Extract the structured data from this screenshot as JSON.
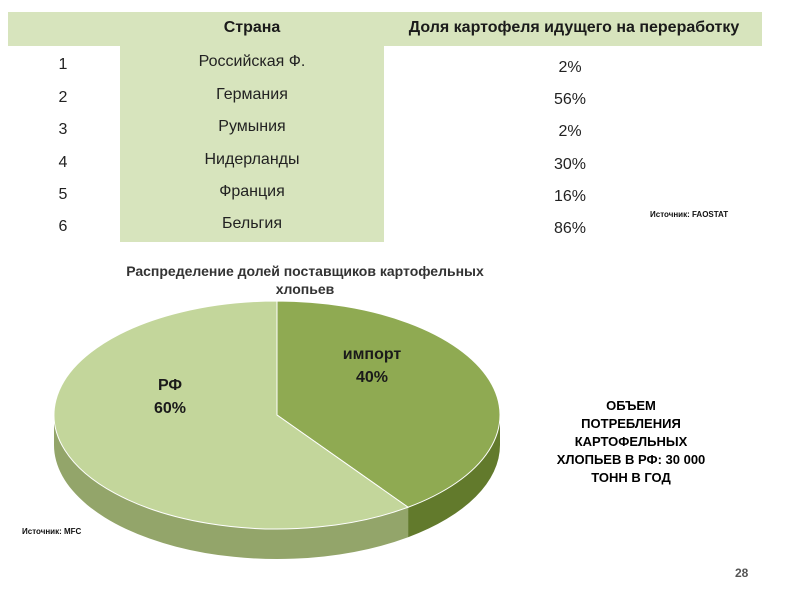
{
  "table": {
    "headers": {
      "country": "Страна",
      "share": "Доля картофеля идущего на переработку"
    },
    "rows": [
      {
        "num": "1",
        "country": "Российская Ф.",
        "share": "2%"
      },
      {
        "num": "2",
        "country": "Германия",
        "share": "56%"
      },
      {
        "num": "3",
        "country": "Румыния",
        "share": "2%"
      },
      {
        "num": "4",
        "country": "Нидерланды",
        "share": "30%"
      },
      {
        "num": "5",
        "country": "Франция",
        "share": "16%"
      },
      {
        "num": "6",
        "country": "Бельгия",
        "share": "86%"
      }
    ],
    "source": "Источник: FAOSTAT"
  },
  "chart_data": {
    "type": "pie",
    "title": "Распределение долей поставщиков картофельных хлопьев",
    "slices": [
      {
        "label": "импорт",
        "value": 40,
        "value_label": "40%",
        "color": "#8faa52"
      },
      {
        "label": "РФ",
        "value": 60,
        "value_label": "60%",
        "color": "#c3d69b"
      }
    ],
    "source": "Источник: MFC"
  },
  "note": "ОБЪЕМ ПОТРЕБЛЕНИЯ КАРТОФЕЛЬНЫХ ХЛОПЬЕВ В РФ: 30 000 ТОНН В ГОД",
  "page_number": "28",
  "colors": {
    "band": "#d7e4bd",
    "import_side": "#627a2c",
    "rf_side": "#93a56a"
  }
}
